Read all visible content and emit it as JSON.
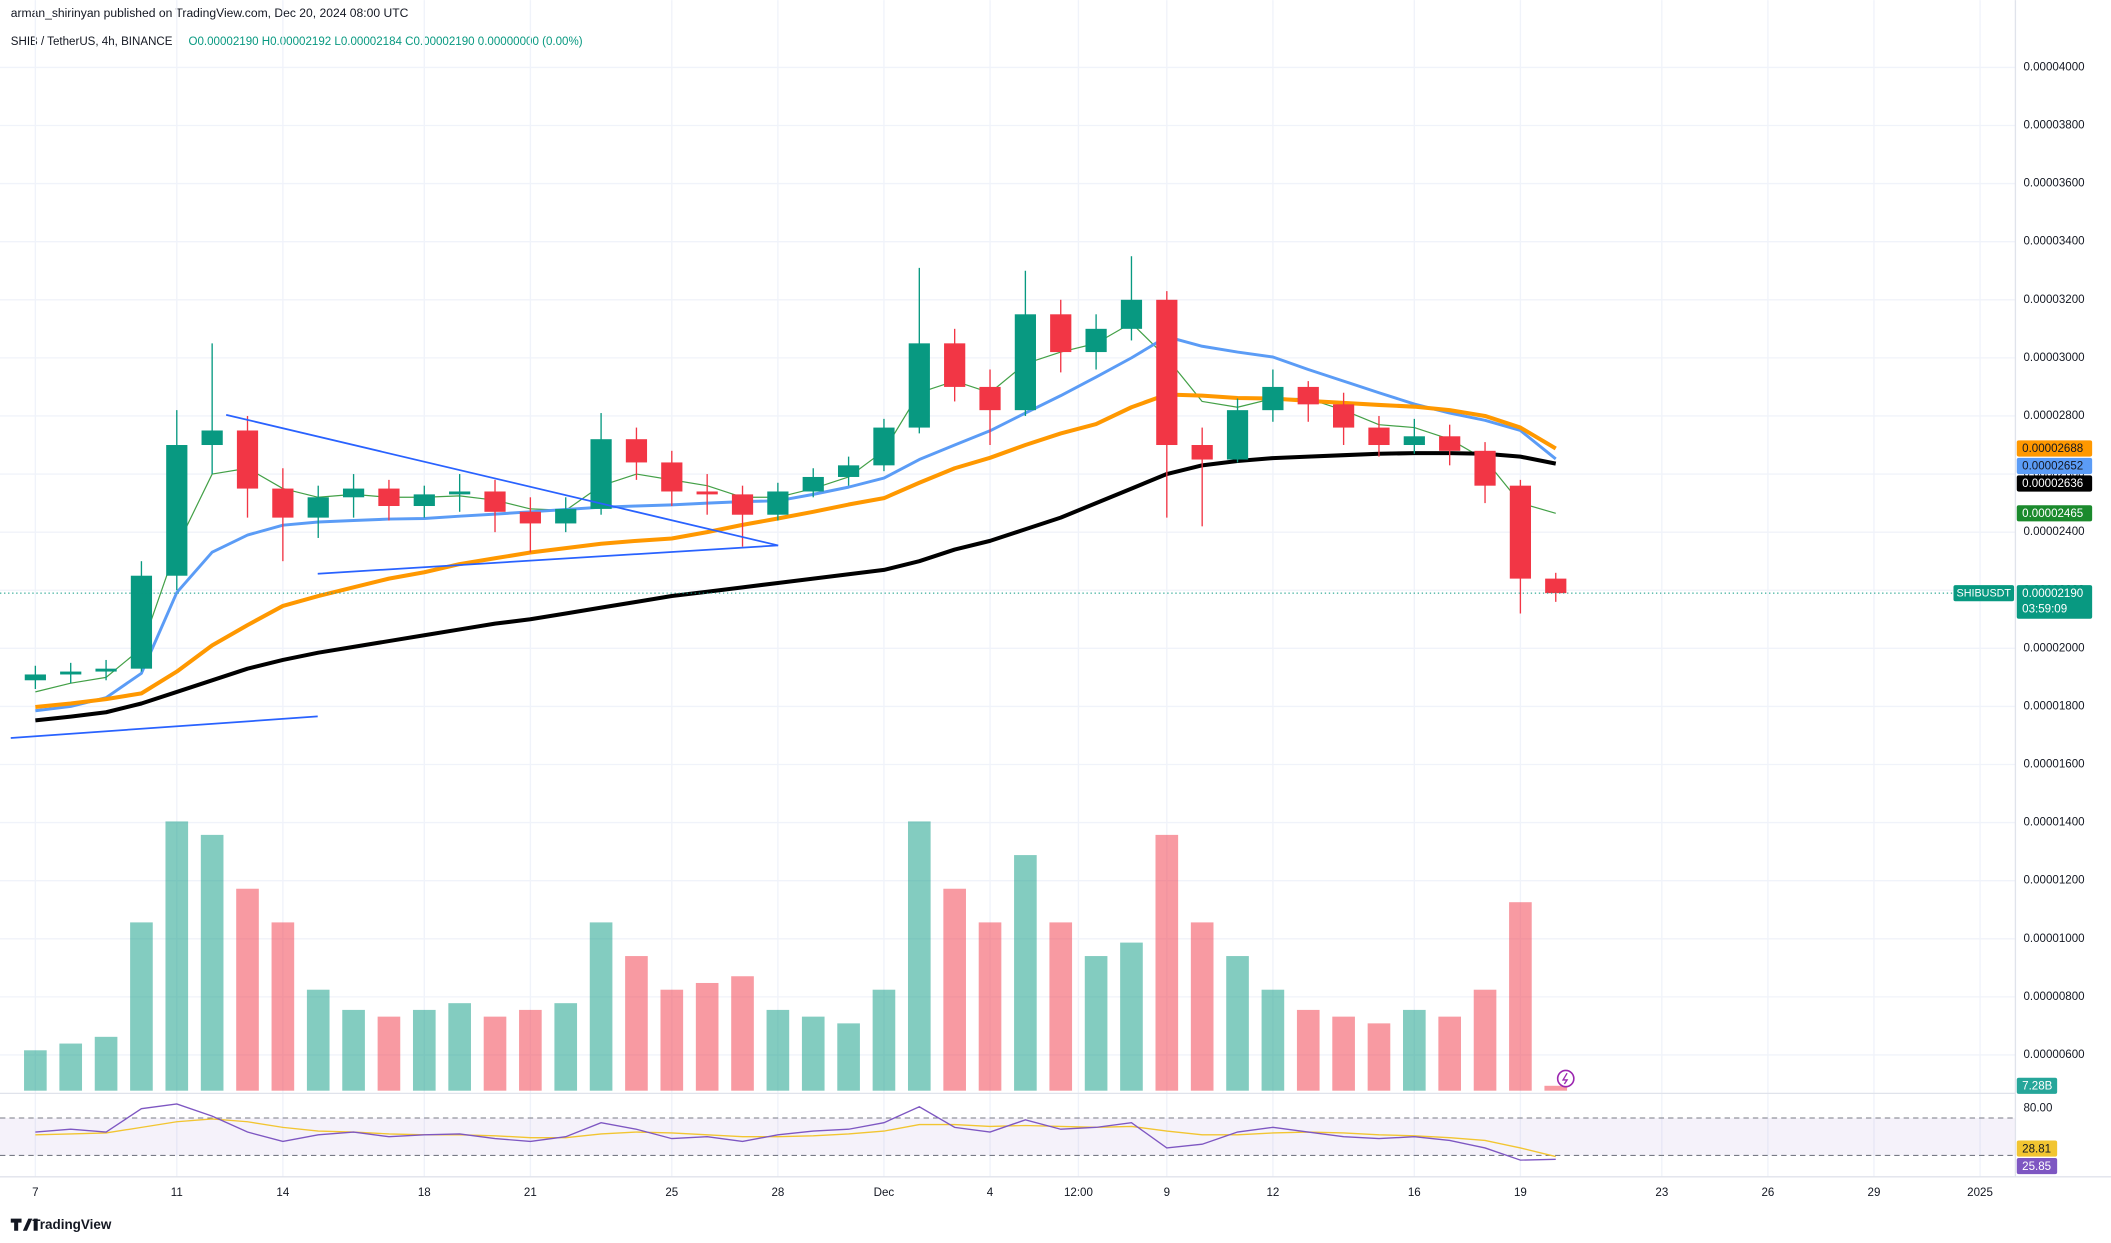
{
  "chart_data": {
    "type": "candlestick",
    "attribution": "arman_shirinyan published on TradingView.com, Dec 20, 2024 08:00 UTC",
    "title": "SHIB / TetherUS, 4h, BINANCE",
    "ohlc_legend": "O0.00002190 H0.00002192 L0.00002184 C0.00002190 0.00000000 (0.00%)",
    "brand": "TradingView",
    "x": [
      7,
      8,
      9,
      10,
      11,
      12,
      13,
      14,
      15,
      16,
      17,
      18,
      19,
      20,
      21,
      22,
      23,
      24,
      25,
      26,
      27,
      28,
      29,
      30,
      31,
      32,
      33,
      34,
      35,
      36,
      37,
      38,
      39,
      40,
      41,
      42,
      43,
      44,
      45,
      46,
      47,
      48,
      49,
      50
    ],
    "xlim": [
      6,
      63
    ],
    "xticks": [
      7,
      11,
      14,
      18,
      21,
      25,
      28,
      {
        "value": 31,
        "label": "Dec"
      },
      {
        "value": 34,
        "label": "4"
      },
      {
        "value": 36.5,
        "label": "12:00"
      },
      {
        "value": 39,
        "label": "9"
      },
      {
        "value": 42,
        "label": "12"
      },
      {
        "value": 46,
        "label": "16"
      },
      {
        "value": 49,
        "label": "19"
      },
      {
        "value": 53,
        "label": "23"
      },
      {
        "value": 56,
        "label": "26"
      },
      {
        "value": 59,
        "label": "29"
      },
      {
        "value": 62,
        "label": "2025"
      }
    ],
    "open": [
      1.89e-05,
      1.91e-05,
      1.92e-05,
      1.93e-05,
      2.25e-05,
      2.7e-05,
      2.75e-05,
      2.55e-05,
      2.45e-05,
      2.52e-05,
      2.55e-05,
      2.49e-05,
      2.53e-05,
      2.54e-05,
      2.47e-05,
      2.43e-05,
      2.48e-05,
      2.72e-05,
      2.64e-05,
      2.54e-05,
      2.53e-05,
      2.46e-05,
      2.54e-05,
      2.59e-05,
      2.63e-05,
      2.76e-05,
      3.05e-05,
      2.9e-05,
      2.82e-05,
      3.15e-05,
      3.02e-05,
      3.1e-05,
      3.2e-05,
      2.7e-05,
      2.65e-05,
      2.82e-05,
      2.9e-05,
      2.84e-05,
      2.76e-05,
      2.7e-05,
      2.73e-05,
      2.68e-05,
      2.56e-05,
      2.24e-05
    ],
    "high": [
      1.94e-05,
      1.95e-05,
      1.96e-05,
      2.3e-05,
      2.82e-05,
      3.05e-05,
      2.8e-05,
      2.62e-05,
      2.56e-05,
      2.6e-05,
      2.58e-05,
      2.56e-05,
      2.6e-05,
      2.58e-05,
      2.52e-05,
      2.52e-05,
      2.81e-05,
      2.76e-05,
      2.68e-05,
      2.6e-05,
      2.56e-05,
      2.57e-05,
      2.62e-05,
      2.66e-05,
      2.79e-05,
      3.31e-05,
      3.1e-05,
      2.96e-05,
      3.3e-05,
      3.2e-05,
      3.15e-05,
      3.35e-05,
      3.23e-05,
      2.76e-05,
      2.86e-05,
      2.96e-05,
      2.92e-05,
      2.88e-05,
      2.8e-05,
      2.79e-05,
      2.77e-05,
      2.71e-05,
      2.58e-05,
      2.26e-05
    ],
    "low": [
      1.86e-05,
      1.88e-05,
      1.89e-05,
      1.92e-05,
      2.2e-05,
      2.6e-05,
      2.45e-05,
      2.3e-05,
      2.38e-05,
      2.45e-05,
      2.44e-05,
      2.45e-05,
      2.47e-05,
      2.4e-05,
      2.33e-05,
      2.4e-05,
      2.46e-05,
      2.58e-05,
      2.49e-05,
      2.46e-05,
      2.35e-05,
      2.44e-05,
      2.52e-05,
      2.56e-05,
      2.61e-05,
      2.74e-05,
      2.85e-05,
      2.7e-05,
      2.8e-05,
      2.95e-05,
      2.96e-05,
      3.06e-05,
      2.45e-05,
      2.42e-05,
      2.64e-05,
      2.78e-05,
      2.78e-05,
      2.7e-05,
      2.66e-05,
      2.67e-05,
      2.63e-05,
      2.5e-05,
      2.12e-05,
      2.16e-05
    ],
    "close": [
      1.91e-05,
      1.92e-05,
      1.93e-05,
      2.25e-05,
      2.7e-05,
      2.75e-05,
      2.55e-05,
      2.45e-05,
      2.52e-05,
      2.55e-05,
      2.49e-05,
      2.53e-05,
      2.54e-05,
      2.47e-05,
      2.43e-05,
      2.48e-05,
      2.72e-05,
      2.64e-05,
      2.54e-05,
      2.53e-05,
      2.46e-05,
      2.54e-05,
      2.59e-05,
      2.63e-05,
      2.76e-05,
      3.05e-05,
      2.9e-05,
      2.82e-05,
      3.15e-05,
      3.02e-05,
      3.1e-05,
      3.2e-05,
      2.7e-05,
      2.65e-05,
      2.82e-05,
      2.9e-05,
      2.84e-05,
      2.76e-05,
      2.7e-05,
      2.73e-05,
      2.68e-05,
      2.56e-05,
      2.24e-05,
      2.19e-05
    ],
    "up_color": "#089981",
    "down_color": "#f23645",
    "ylim": [
      4.77e-06,
      4.06e-05
    ],
    "yticks": [
      {
        "value": 4e-05,
        "label": "0.00004000"
      },
      {
        "value": 3.8e-05,
        "label": "0.00003800"
      },
      {
        "value": 3.6e-05,
        "label": "0.00003600"
      },
      {
        "value": 3.4e-05,
        "label": "0.00003400"
      },
      {
        "value": 3.2e-05,
        "label": "0.00003200"
      },
      {
        "value": 3e-05,
        "label": "0.00003000"
      },
      {
        "value": 2.8e-05,
        "label": "0.00002800"
      },
      {
        "value": 2.6e-05,
        "label": "0.00002600"
      },
      {
        "value": 2.4e-05,
        "label": "0.00002400"
      },
      {
        "value": 2.2e-05,
        "label": "0.00002200"
      },
      {
        "value": 2e-05,
        "label": "0.00002000"
      },
      {
        "value": 1.8e-05,
        "label": "0.00001800"
      },
      {
        "value": 1.6e-05,
        "label": "0.00001600"
      },
      {
        "value": 1.4e-05,
        "label": "0.00001400"
      },
      {
        "value": 1.2e-05,
        "label": "0.00001200"
      },
      {
        "value": 1e-05,
        "label": "0.00001000"
      },
      {
        "value": 8e-06,
        "label": "0.00000800"
      },
      {
        "value": 6e-06,
        "label": "0.00000600"
      }
    ],
    "grid": true,
    "last_price": {
      "symbol": "SHIBUSDT",
      "value": 2.19e-05,
      "label": "0.00002190",
      "countdown": "03:59:09",
      "color": "#089981"
    },
    "moving_averages": [
      {
        "color": "#43a047",
        "width": 0.9,
        "label_bg": "#1b8a2d",
        "label_fg": "#ffffff",
        "last_label": "0.00002465",
        "values": [
          1.85e-05,
          1.88e-05,
          1.9e-05,
          2e-05,
          2.35e-05,
          2.6e-05,
          2.62e-05,
          2.55e-05,
          2.52e-05,
          2.53e-05,
          2.52e-05,
          2.52e-05,
          2.525e-05,
          2.51e-05,
          2.48e-05,
          2.475e-05,
          2.56e-05,
          2.6e-05,
          2.58e-05,
          2.56e-05,
          2.52e-05,
          2.52e-05,
          2.55e-05,
          2.59e-05,
          2.68e-05,
          2.88e-05,
          2.92e-05,
          2.88e-05,
          2.98e-05,
          3.02e-05,
          3.05e-05,
          3.12e-05,
          3e-05,
          2.85e-05,
          2.83e-05,
          2.86e-05,
          2.86e-05,
          2.82e-05,
          2.77e-05,
          2.76e-05,
          2.72e-05,
          2.65e-05,
          2.5e-05,
          2.465e-05
        ]
      },
      {
        "color": "#5b9cf6",
        "width": 2.2,
        "label_bg": "#5b9cf6",
        "label_fg": "#131722",
        "last_label": "0.00002652",
        "values": [
          1.785e-05,
          1.8e-05,
          1.83e-05,
          1.914e-05,
          2.192e-05,
          2.331e-05,
          2.39e-05,
          2.424e-05,
          2.435e-05,
          2.44e-05,
          2.445e-05,
          2.447e-05,
          2.455e-05,
          2.462e-05,
          2.47e-05,
          2.478e-05,
          2.486e-05,
          2.49e-05,
          2.494e-05,
          2.5e-05,
          2.505e-05,
          2.508e-05,
          2.53e-05,
          2.555e-05,
          2.586e-05,
          2.65e-05,
          2.7e-05,
          2.749e-05,
          2.81e-05,
          2.87e-05,
          2.934e-05,
          3e-05,
          3.073e-05,
          3.04e-05,
          3.02e-05,
          3.003e-05,
          2.96e-05,
          2.92e-05,
          2.88e-05,
          2.841e-05,
          2.81e-05,
          2.785e-05,
          2.75e-05,
          2.652e-05
        ]
      },
      {
        "color": "#ff9800",
        "width": 3,
        "label_bg": "#ff9800",
        "label_fg": "#131722",
        "last_label": "0.00002688",
        "values": [
          1.798e-05,
          1.81e-05,
          1.825e-05,
          1.845e-05,
          1.92e-05,
          2.01e-05,
          2.08e-05,
          2.146e-05,
          2.18e-05,
          2.21e-05,
          2.24e-05,
          2.262e-05,
          2.29e-05,
          2.31e-05,
          2.33e-05,
          2.345e-05,
          2.36e-05,
          2.37e-05,
          2.378e-05,
          2.4e-05,
          2.425e-05,
          2.447e-05,
          2.47e-05,
          2.495e-05,
          2.517e-05,
          2.57e-05,
          2.62e-05,
          2.656e-05,
          2.7e-05,
          2.74e-05,
          2.772e-05,
          2.83e-05,
          2.874e-05,
          2.87e-05,
          2.862e-05,
          2.86e-05,
          2.852e-05,
          2.845e-05,
          2.838e-05,
          2.832e-05,
          2.82e-05,
          2.8e-05,
          2.76e-05,
          2.688e-05
        ]
      },
      {
        "color": "#000000",
        "width": 3,
        "label_bg": "#000000",
        "label_fg": "#ffffff",
        "last_label": "0.00002636",
        "values": [
          1.752e-05,
          1.765e-05,
          1.78e-05,
          1.81e-05,
          1.85e-05,
          1.89e-05,
          1.93e-05,
          1.96e-05,
          1.985e-05,
          2.005e-05,
          2.025e-05,
          2.045e-05,
          2.065e-05,
          2.085e-05,
          2.1e-05,
          2.12e-05,
          2.14e-05,
          2.16e-05,
          2.18e-05,
          2.195e-05,
          2.21e-05,
          2.225e-05,
          2.24e-05,
          2.255e-05,
          2.27e-05,
          2.3e-05,
          2.34e-05,
          2.37e-05,
          2.41e-05,
          2.45e-05,
          2.5e-05,
          2.55e-05,
          2.6e-05,
          2.63e-05,
          2.645e-05,
          2.655e-05,
          2.66e-05,
          2.665e-05,
          2.67e-05,
          2.672e-05,
          2.672e-05,
          2.67e-05,
          2.66e-05,
          2.636e-05
        ]
      }
    ],
    "volume": {
      "values": [
        60,
        70,
        80,
        250,
        400,
        380,
        300,
        250,
        150,
        120,
        110,
        120,
        130,
        110,
        120,
        130,
        250,
        200,
        150,
        160,
        170,
        120,
        110,
        100,
        150,
        400,
        300,
        250,
        350,
        250,
        200,
        220,
        380,
        250,
        200,
        150,
        120,
        110,
        100,
        120,
        110,
        150,
        280,
        7.28
      ],
      "last_label": "7.28B",
      "color": "#26a69a"
    },
    "rsi": {
      "ylim": [
        10,
        92
      ],
      "yticks": [
        {
          "value": 80,
          "label": "80.00"
        }
      ],
      "bands": [
        30,
        70
      ],
      "color": "#7e57c2",
      "signal_color": "#f2c531",
      "values": [
        55,
        58,
        55,
        80,
        85,
        72,
        55,
        45,
        52,
        55,
        50,
        52,
        53,
        48,
        45,
        50,
        65,
        58,
        48,
        50,
        45,
        52,
        56,
        58,
        65,
        82,
        60,
        55,
        68,
        58,
        60,
        65,
        38,
        42,
        55,
        60,
        55,
        50,
        48,
        50,
        46,
        38,
        25,
        25.85
      ],
      "signal": [
        52,
        53,
        54,
        60,
        66,
        69,
        66,
        60,
        56,
        55,
        53,
        52,
        52,
        51,
        49,
        49,
        53,
        55,
        54,
        52,
        50,
        50,
        51,
        53,
        56,
        63,
        63,
        61,
        62,
        61,
        60,
        61,
        56,
        52,
        52,
        54,
        55,
        54,
        52,
        51,
        49,
        46,
        38,
        28.81
      ]
    }
  }
}
